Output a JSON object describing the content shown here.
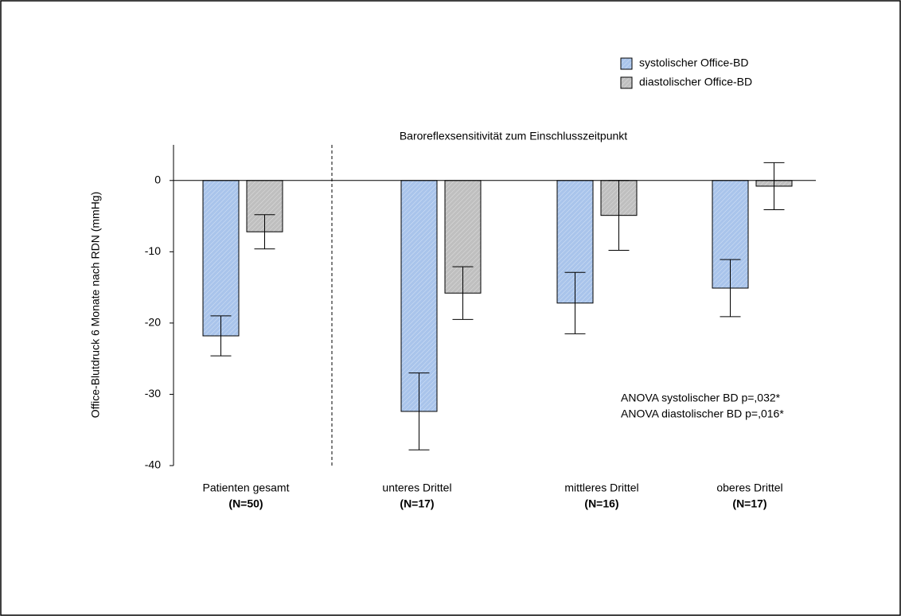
{
  "chart_data": {
    "type": "bar",
    "y_label": "Office-Blutdruck  6 Monate nach RDN (mmHg)",
    "categories": [
      "Patienten gesamt",
      "unteres Drittel",
      "mittleres Drittel",
      "oberes Drittel"
    ],
    "category_sublabels": [
      "(N=50)",
      "(N=17)",
      "(N=16)",
      "(N=17)"
    ],
    "series": [
      {
        "name": "systolischer Office-BD",
        "color": "#a9c4eb",
        "values": [
          -21.8,
          -32.4,
          -17.2,
          -15.1
        ],
        "errors": [
          2.8,
          5.4,
          4.3,
          4.0
        ]
      },
      {
        "name": "diastolischer Office-BD",
        "color": "#bfbfbf",
        "values": [
          -7.2,
          -15.8,
          -4.9,
          -0.8
        ],
        "errors": [
          2.4,
          3.7,
          4.9,
          3.3
        ]
      }
    ],
    "ylim": [
      -40,
      5
    ],
    "yticks": [
      -40,
      -30,
      -20,
      -10,
      0
    ],
    "annotations": [
      "Baroreflexsensitivität zum Einschlusszeitpunkt",
      "ANOVA systolischer BD p=,032*",
      "ANOVA diastolischer BD p=,016*"
    ],
    "legend": "top-right"
  }
}
